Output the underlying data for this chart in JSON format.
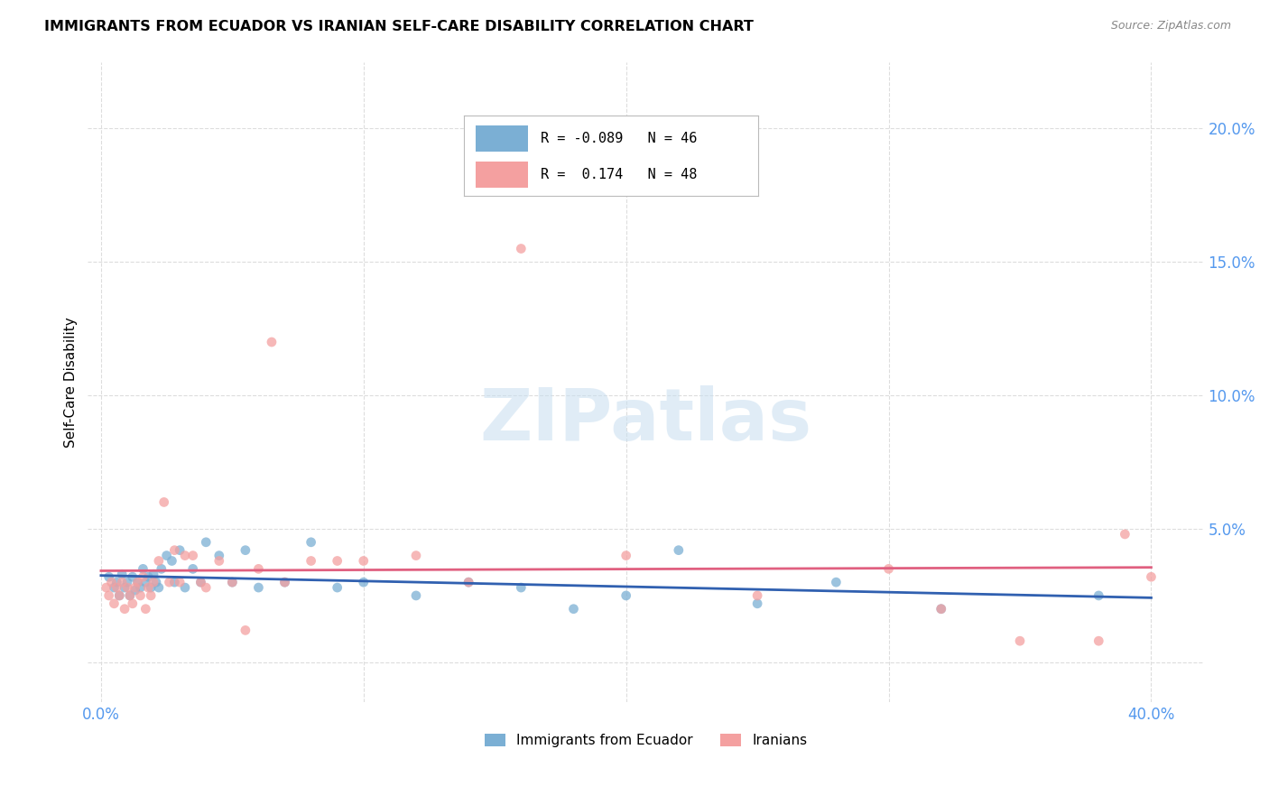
{
  "title": "IMMIGRANTS FROM ECUADOR VS IRANIAN SELF-CARE DISABILITY CORRELATION CHART",
  "source": "Source: ZipAtlas.com",
  "ylabel": "Self-Care Disability",
  "ytick_values": [
    0.0,
    0.05,
    0.1,
    0.15,
    0.2
  ],
  "ytick_labels": [
    "",
    "5.0%",
    "10.0%",
    "15.0%",
    "20.0%"
  ],
  "xtick_values": [
    0.0,
    0.1,
    0.2,
    0.3,
    0.4
  ],
  "xtick_labels": [
    "0.0%",
    "",
    "",
    "",
    "40.0%"
  ],
  "xlim": [
    -0.005,
    0.42
  ],
  "ylim": [
    -0.015,
    0.225
  ],
  "r_ecuador": -0.089,
  "n_ecuador": 46,
  "r_iranian": 0.174,
  "n_iranian": 48,
  "color_ecuador": "#7BAFD4",
  "color_iranian": "#F4A0A0",
  "trendline_color_ecuador": "#3060B0",
  "trendline_color_iranian": "#E06080",
  "tick_color": "#5599EE",
  "watermark_color": "#C8DEF0",
  "ecuador_x": [
    0.003,
    0.005,
    0.006,
    0.007,
    0.008,
    0.009,
    0.01,
    0.011,
    0.012,
    0.013,
    0.014,
    0.015,
    0.016,
    0.017,
    0.018,
    0.019,
    0.02,
    0.021,
    0.022,
    0.023,
    0.025,
    0.027,
    0.028,
    0.03,
    0.032,
    0.035,
    0.038,
    0.04,
    0.045,
    0.05,
    0.055,
    0.06,
    0.07,
    0.08,
    0.09,
    0.1,
    0.12,
    0.14,
    0.16,
    0.18,
    0.2,
    0.22,
    0.25,
    0.28,
    0.32,
    0.38
  ],
  "ecuador_y": [
    0.032,
    0.028,
    0.03,
    0.025,
    0.033,
    0.028,
    0.03,
    0.025,
    0.032,
    0.027,
    0.03,
    0.028,
    0.035,
    0.03,
    0.032,
    0.028,
    0.033,
    0.03,
    0.028,
    0.035,
    0.04,
    0.038,
    0.03,
    0.042,
    0.028,
    0.035,
    0.03,
    0.045,
    0.04,
    0.03,
    0.042,
    0.028,
    0.03,
    0.045,
    0.028,
    0.03,
    0.025,
    0.03,
    0.028,
    0.02,
    0.025,
    0.042,
    0.022,
    0.03,
    0.02,
    0.025
  ],
  "iranian_x": [
    0.002,
    0.003,
    0.004,
    0.005,
    0.006,
    0.007,
    0.008,
    0.009,
    0.01,
    0.011,
    0.012,
    0.013,
    0.014,
    0.015,
    0.016,
    0.017,
    0.018,
    0.019,
    0.02,
    0.022,
    0.024,
    0.026,
    0.028,
    0.03,
    0.032,
    0.035,
    0.038,
    0.04,
    0.045,
    0.05,
    0.055,
    0.06,
    0.065,
    0.07,
    0.08,
    0.09,
    0.1,
    0.12,
    0.14,
    0.16,
    0.2,
    0.25,
    0.3,
    0.32,
    0.35,
    0.38,
    0.4,
    0.39
  ],
  "iranian_y": [
    0.028,
    0.025,
    0.03,
    0.022,
    0.028,
    0.025,
    0.03,
    0.02,
    0.028,
    0.025,
    0.022,
    0.028,
    0.03,
    0.025,
    0.032,
    0.02,
    0.028,
    0.025,
    0.03,
    0.038,
    0.06,
    0.03,
    0.042,
    0.03,
    0.04,
    0.04,
    0.03,
    0.028,
    0.038,
    0.03,
    0.012,
    0.035,
    0.12,
    0.03,
    0.038,
    0.038,
    0.038,
    0.04,
    0.03,
    0.155,
    0.04,
    0.025,
    0.035,
    0.02,
    0.008,
    0.008,
    0.032,
    0.048
  ]
}
